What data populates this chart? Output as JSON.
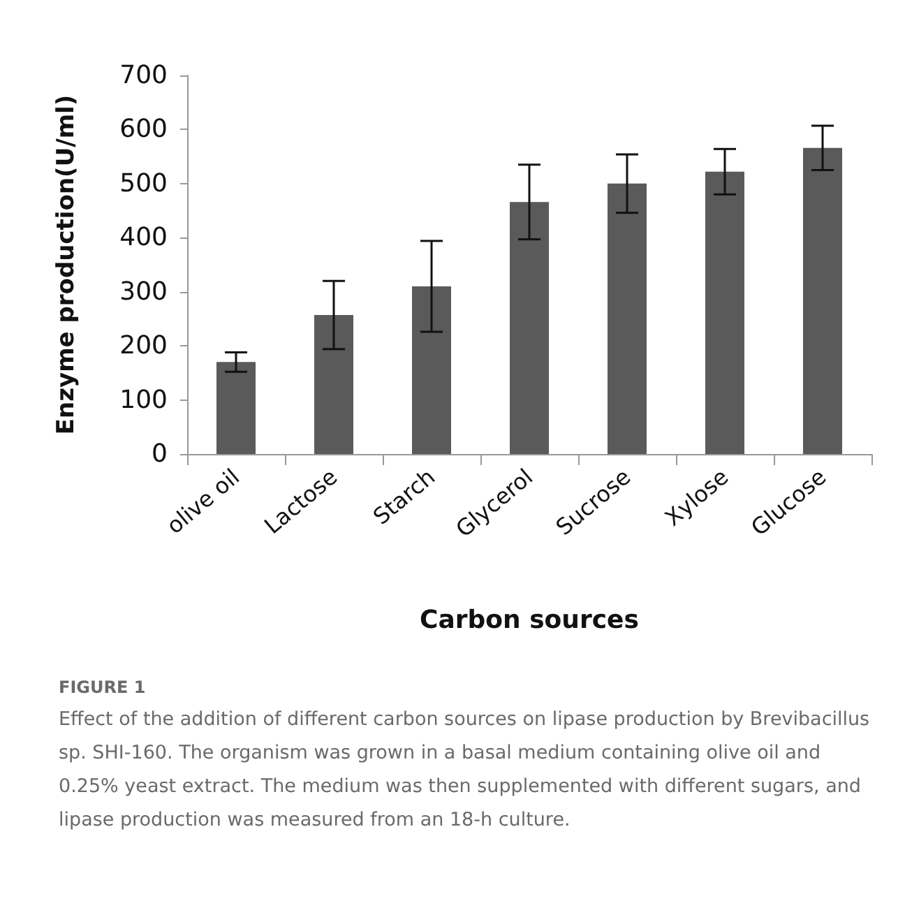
{
  "chart_data": {
    "type": "bar",
    "categories": [
      "olive oil",
      "Lactose",
      "Starch",
      "Glycerol",
      "Sucrose",
      "Xylose",
      "Glucose"
    ],
    "values": [
      170,
      257,
      310,
      466,
      500,
      522,
      566
    ],
    "errors": [
      18,
      63,
      84,
      69,
      54,
      42,
      41
    ],
    "color": "#5a5a5a",
    "xlabel": "Carbon sources",
    "ylabel": "Enzyme production(U/ml)",
    "ylim": [
      0,
      700
    ],
    "yticks": [
      0,
      100,
      200,
      300,
      400,
      500,
      600,
      700
    ],
    "grid": false,
    "annotations": [
      "FIGURE 1",
      "Effect of the addition of different carbon sources on lipase production by Brevibacillus sp. SHI-160. The organism was grown in a basal medium containing olive oil and 0.25% yeast extract. The medium was then supplemented with different sugars, and lipase production was measured from an 18-h culture."
    ]
  }
}
